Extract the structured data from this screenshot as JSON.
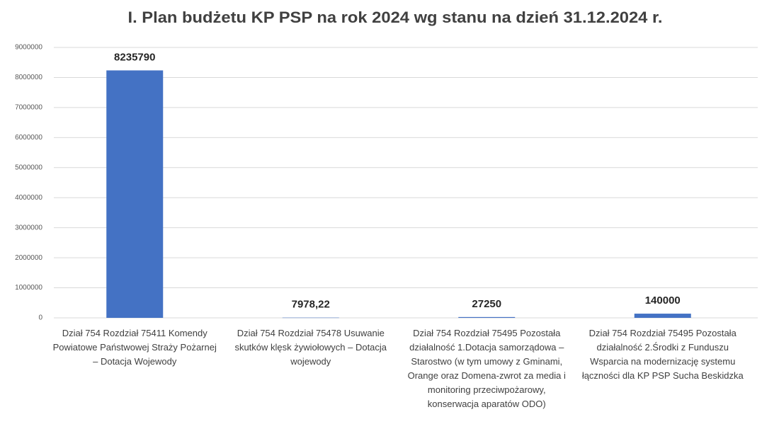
{
  "chart_data": {
    "type": "bar",
    "title": "I. Plan budżetu KP PSP na rok 2024 wg stanu na dzień 31.12.2024 r.",
    "categories": [
      "Dział 754 Rozdział 75411 Komendy Powiatowe Państwowej Straży Pożarnej – Dotacja Wojewody",
      "Dział 754 Rozdział 75478 Usuwanie skutków klęsk żywiołowych – Dotacja wojewody",
      "Dział 754 Rozdział 75495 Pozostała działalność 1.Dotacja samorządowa – Starostwo (w tym umowy z Gminami, Orange oraz Domena-zwrot za media i monitoring przeciwpożarowy, konserwacja aparatów ODO)",
      "Dział 754 Rozdział 75495 Pozostała działalność 2.Środki z Funduszu Wsparcia na modernizację systemu łączności dla KP PSP Sucha Beskidzka"
    ],
    "values": [
      8235790,
      7978.22,
      27250,
      140000
    ],
    "value_labels": [
      "8235790",
      "7978,22",
      "27250",
      "140000"
    ],
    "color": "#4472c4",
    "ylim": [
      0,
      9000000
    ],
    "yticks": [
      0,
      1000000,
      2000000,
      3000000,
      4000000,
      5000000,
      6000000,
      7000000,
      8000000,
      9000000
    ],
    "grid": true
  }
}
